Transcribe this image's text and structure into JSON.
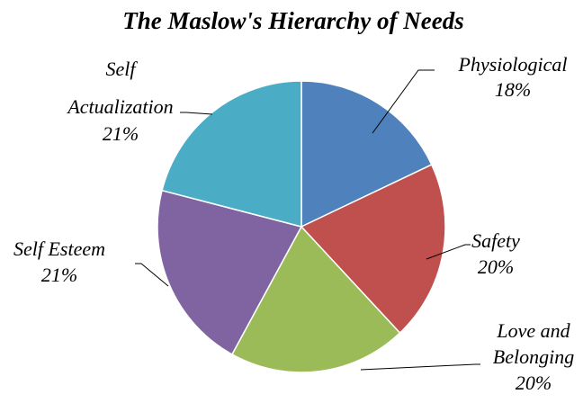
{
  "chart_data": {
    "type": "pie",
    "title": "The Maslow's Hierarchy of Needs",
    "start_angle_deg": 0,
    "direction": "clockwise",
    "slices": [
      {
        "name": "Physiological",
        "label_lines": [
          "Physiological"
        ],
        "value": 18,
        "value_label": "18%",
        "color": "#4F81BD"
      },
      {
        "name": "Safety",
        "label_lines": [
          "Safety"
        ],
        "value": 20,
        "value_label": "20%",
        "color": "#C0504D"
      },
      {
        "name": "Love and Belonging",
        "label_lines": [
          "Love and",
          "Belonging"
        ],
        "value": 20,
        "value_label": "20%",
        "color": "#9BBB59"
      },
      {
        "name": "Self Esteem",
        "label_lines": [
          "Self Esteem"
        ],
        "value": 21,
        "value_label": "21%",
        "color": "#8064A2"
      },
      {
        "name": "Self Actualization",
        "label_lines": [
          "Self",
          "Actualization"
        ],
        "value": 21,
        "value_label": "21%",
        "color": "#4BACC6"
      }
    ],
    "legend": "none"
  }
}
